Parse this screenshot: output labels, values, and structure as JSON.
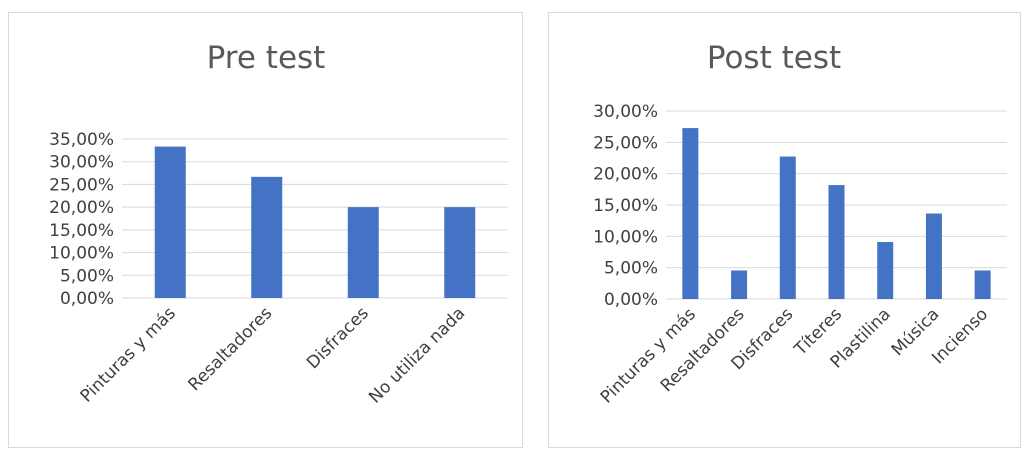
{
  "chart_data": [
    {
      "type": "bar",
      "title": "Pre test",
      "categories": [
        "Pinturas y más",
        "Resaltadores",
        "Disfraces",
        "No utiliza nada"
      ],
      "values": [
        33.33,
        26.67,
        20.0,
        20.0
      ],
      "ylim": [
        0,
        35
      ],
      "yticks": [
        "0,00%",
        "5,00%",
        "10,00%",
        "15,00%",
        "20,00%",
        "25,00%",
        "30,00%",
        "35,00%"
      ],
      "bar_color": "#4472c4",
      "grid": true,
      "legend": "none"
    },
    {
      "type": "bar",
      "title": "Post test",
      "categories": [
        "Pinturas y más",
        "Resaltadores",
        "Disfraces",
        "Títeres",
        "Plastilina",
        "Música",
        "Incienso"
      ],
      "values": [
        27.27,
        4.55,
        22.73,
        18.18,
        9.09,
        13.64,
        4.55
      ],
      "ylim": [
        0,
        30
      ],
      "yticks": [
        "0,00%",
        "5,00%",
        "10,00%",
        "15,00%",
        "20,00%",
        "25,00%",
        "30,00%"
      ],
      "bar_color": "#4472c4",
      "grid": true,
      "legend": "none"
    }
  ]
}
